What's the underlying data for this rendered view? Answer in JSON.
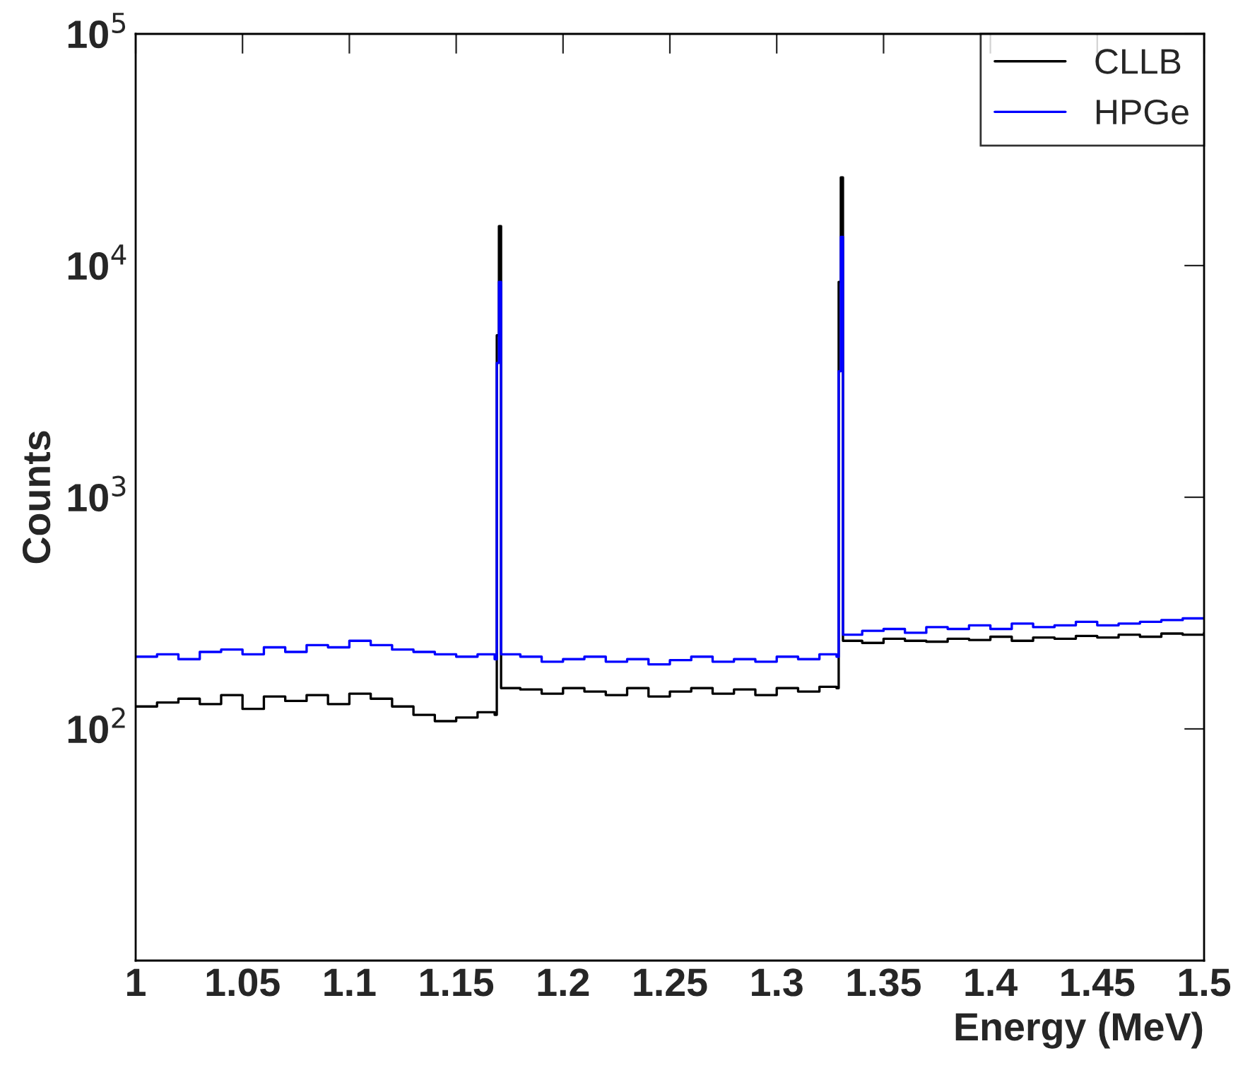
{
  "chart_data": {
    "type": "step",
    "xlabel": "Energy (MeV)",
    "ylabel": "Counts",
    "log": "y",
    "legend": "top right",
    "grid": false,
    "xlim": [
      1,
      1.5
    ],
    "xticks": [
      1,
      1.05,
      1.1,
      1.15,
      1.2,
      1.25,
      1.3,
      1.35,
      1.4,
      1.45,
      1.5
    ],
    "ylim": [
      10,
      100000
    ],
    "yticks": [
      {
        "value": 100,
        "label": "10$^{2}$"
      },
      {
        "value": 1000,
        "label": "10$^{3}$"
      },
      {
        "value": 10000,
        "label": "10$^{4}$"
      },
      {
        "value": 100000,
        "label": "10$^{5}$"
      }
    ],
    "series": [
      {
        "name": "CLLB",
        "color": "#000000",
        "x": [
          1.0,
          1.01,
          1.02,
          1.03,
          1.04,
          1.05,
          1.06,
          1.07,
          1.08,
          1.09,
          1.1,
          1.11,
          1.12,
          1.13,
          1.14,
          1.15,
          1.16,
          1.168,
          1.169,
          1.17,
          1.171,
          1.18,
          1.19,
          1.2,
          1.21,
          1.22,
          1.23,
          1.24,
          1.25,
          1.26,
          1.27,
          1.28,
          1.29,
          1.3,
          1.31,
          1.32,
          1.328,
          1.329,
          1.33,
          1.331,
          1.34,
          1.35,
          1.36,
          1.37,
          1.38,
          1.39,
          1.4,
          1.41,
          1.42,
          1.43,
          1.44,
          1.45,
          1.46,
          1.47,
          1.48,
          1.49,
          1.5
        ],
        "values": [
          125,
          130,
          135,
          128,
          140,
          122,
          138,
          132,
          140,
          128,
          142,
          135,
          125,
          115,
          108,
          112,
          118,
          115,
          5000,
          14800,
          150,
          148,
          142,
          150,
          145,
          140,
          150,
          138,
          145,
          150,
          142,
          148,
          140,
          150,
          145,
          152,
          150,
          8500,
          24000,
          240,
          235,
          245,
          240,
          238,
          245,
          242,
          250,
          240,
          248,
          245,
          252,
          248,
          255,
          250,
          258,
          255,
          260
        ]
      },
      {
        "name": "HPGe",
        "color": "#0000ff",
        "x": [
          1.0,
          1.01,
          1.02,
          1.03,
          1.04,
          1.05,
          1.06,
          1.07,
          1.08,
          1.09,
          1.1,
          1.11,
          1.12,
          1.13,
          1.14,
          1.15,
          1.16,
          1.168,
          1.169,
          1.17,
          1.171,
          1.18,
          1.19,
          1.2,
          1.21,
          1.22,
          1.23,
          1.24,
          1.25,
          1.26,
          1.27,
          1.28,
          1.29,
          1.3,
          1.31,
          1.32,
          1.328,
          1.329,
          1.33,
          1.331,
          1.34,
          1.35,
          1.36,
          1.37,
          1.38,
          1.39,
          1.4,
          1.41,
          1.42,
          1.43,
          1.44,
          1.45,
          1.46,
          1.47,
          1.48,
          1.49,
          1.5
        ],
        "values": [
          205,
          210,
          200,
          215,
          220,
          210,
          225,
          215,
          230,
          225,
          240,
          230,
          220,
          215,
          210,
          205,
          210,
          200,
          3800,
          8500,
          210,
          205,
          195,
          200,
          205,
          195,
          200,
          190,
          198,
          205,
          195,
          200,
          195,
          205,
          200,
          210,
          205,
          3500,
          13300,
          255,
          265,
          270,
          260,
          275,
          270,
          280,
          270,
          285,
          275,
          280,
          290,
          280,
          285,
          290,
          295,
          300,
          300
        ]
      }
    ]
  }
}
